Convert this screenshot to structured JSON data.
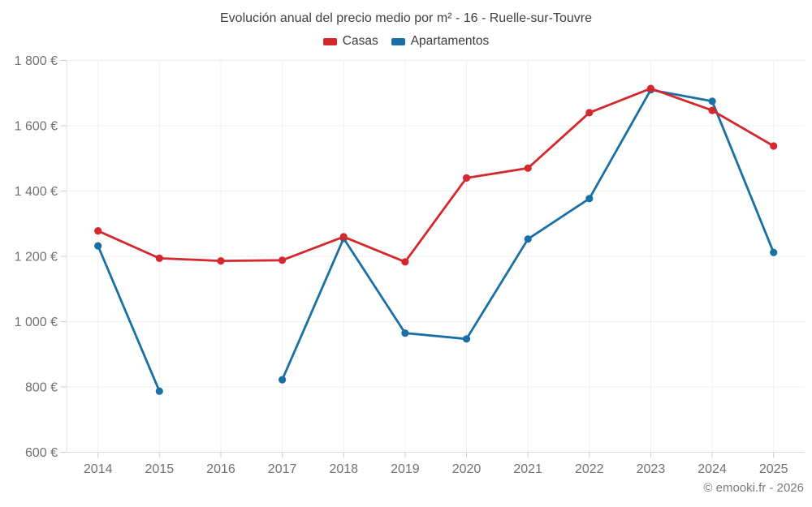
{
  "title": "Evolución anual del precio medio por m² - 16 - Ruelle-sur-Touvre",
  "footer": "© emooki.fr - 2026",
  "colors": {
    "casas": "#d4282d",
    "apartamentos": "#1a6fa5",
    "grid": "#efefef",
    "axis": "#e0e0e0",
    "tick": "#cdcdcd",
    "title_text": "#414141",
    "label_text": "#717171"
  },
  "chart_data": {
    "type": "line",
    "title": "Evolución anual del precio medio por m² - 16 - Ruelle-sur-Touvre",
    "categories": [
      "2014",
      "2015",
      "2016",
      "2017",
      "2018",
      "2019",
      "2020",
      "2021",
      "2022",
      "2023",
      "2024",
      "2025"
    ],
    "series": [
      {
        "name": "Casas",
        "color": "#d4282d",
        "values": [
          1278,
          1194,
          1186,
          1188,
          1260,
          1183,
          1440,
          1470,
          1640,
          1714,
          1647,
          1538
        ]
      },
      {
        "name": "Apartamentos",
        "color": "#1a6fa5",
        "values": [
          1232,
          787,
          null,
          822,
          1255,
          965,
          947,
          1253,
          1377,
          1710,
          1675,
          1212
        ]
      }
    ],
    "ylim": [
      600,
      1800
    ],
    "yticks": [
      {
        "value": 600,
        "label": "600 €"
      },
      {
        "value": 800,
        "label": "800 €"
      },
      {
        "value": 1000,
        "label": "1 000 €"
      },
      {
        "value": 1200,
        "label": "1 200 €"
      },
      {
        "value": 1400,
        "label": "1 400 €"
      },
      {
        "value": 1600,
        "label": "1 600 €"
      },
      {
        "value": 1800,
        "label": "1 800 €"
      }
    ],
    "xlabel": "",
    "ylabel": "",
    "grid": true,
    "legend_position": "top",
    "unit": "€"
  }
}
